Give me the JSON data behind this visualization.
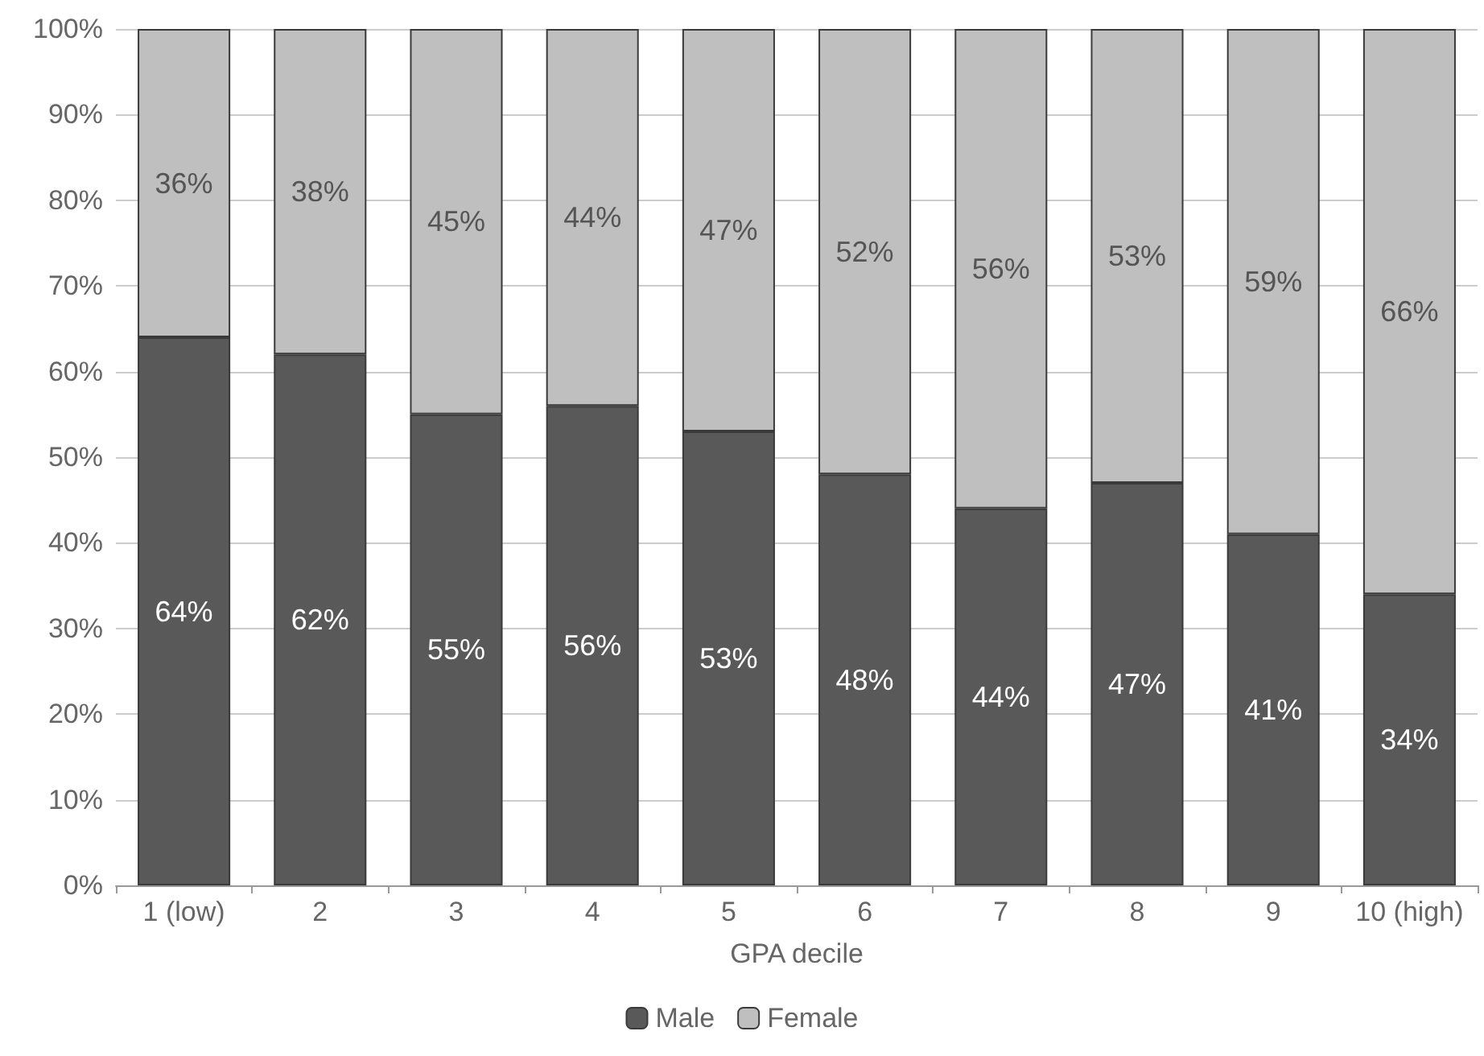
{
  "chart_data": {
    "type": "bar",
    "stacked": true,
    "xlabel": "GPA decile",
    "categories": [
      "1 (low)",
      "2",
      "3",
      "4",
      "5",
      "6",
      "7",
      "8",
      "9",
      "10 (high)"
    ],
    "series": [
      {
        "name": "Male",
        "color": "#595959",
        "values": [
          64,
          62,
          55,
          56,
          53,
          48,
          44,
          47,
          41,
          34
        ],
        "value_labels": [
          "64%",
          "62%",
          "55%",
          "56%",
          "53%",
          "48%",
          "44%",
          "47%",
          "41%",
          "34%"
        ]
      },
      {
        "name": "Female",
        "color": "#bfbfbf",
        "values": [
          36,
          38,
          45,
          44,
          47,
          52,
          56,
          53,
          59,
          66
        ],
        "value_labels": [
          "36%",
          "38%",
          "45%",
          "44%",
          "47%",
          "52%",
          "56%",
          "53%",
          "59%",
          "66%"
        ]
      }
    ],
    "ylim": [
      0,
      100
    ],
    "yticks": [
      {
        "value": 0,
        "label": "0%"
      },
      {
        "value": 10,
        "label": "10%"
      },
      {
        "value": 20,
        "label": "20%"
      },
      {
        "value": 30,
        "label": "30%"
      },
      {
        "value": 40,
        "label": "40%"
      },
      {
        "value": 50,
        "label": "50%"
      },
      {
        "value": 60,
        "label": "60%"
      },
      {
        "value": 70,
        "label": "70%"
      },
      {
        "value": 80,
        "label": "80%"
      },
      {
        "value": 90,
        "label": "90%"
      },
      {
        "value": 100,
        "label": "100%"
      }
    ],
    "grid": "y",
    "legend": "bottom"
  }
}
